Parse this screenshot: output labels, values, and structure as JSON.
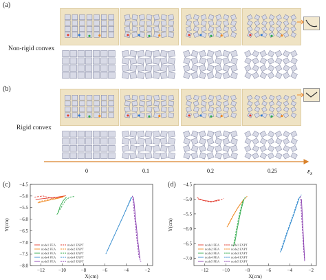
{
  "panels": {
    "a": {
      "label": "(a)",
      "row_label": "Non-rigid convex"
    },
    "b": {
      "label": "(b)",
      "row_label": "Rigid convex"
    },
    "c": {
      "label": "(c)"
    },
    "d": {
      "label": "(d)"
    }
  },
  "strain_axis": {
    "ticks": [
      "0",
      "0.1",
      "0.2",
      "0.25"
    ],
    "symbol": "ε",
    "subscript": "x",
    "color": "#d9822b"
  },
  "colors": {
    "frame_bg": "#efe3c4",
    "tile": "#d8dae6",
    "tile_stroke": "#7a7f9c",
    "marker_red": "#e23b2e",
    "marker_blue": "#2f78d4",
    "marker_green": "#2eaa4a",
    "marker_orange": "#f08a24"
  },
  "chart_data": [
    {
      "type": "line",
      "panel": "(c)",
      "xlabel": "X(cm)",
      "ylabel": "Y(cm)",
      "xlim": [
        -13,
        -1.5
      ],
      "ylim": [
        -8.0,
        -4.5
      ],
      "xticks": [
        -12,
        -10,
        -8,
        -6,
        -4,
        -2
      ],
      "yticks": [
        -4.5,
        -5.0,
        -5.5,
        -6.0,
        -6.5,
        -7.0,
        -7.5,
        -8.0
      ],
      "legend_loc": "lower-left",
      "series": [
        {
          "name": "node1 FEA",
          "color": "#e23b2e",
          "dash": false,
          "x": [
            -12.5,
            -11.5,
            -10.5,
            -9.8
          ],
          "y": [
            -5.15,
            -5.1,
            -5.05,
            -5.0
          ]
        },
        {
          "name": "node1 EXPT",
          "color": "#e23b2e",
          "dash": true,
          "x": [
            -12.6,
            -11.8,
            -11.0,
            -10.2,
            -9.6
          ],
          "y": [
            -5.05,
            -5.0,
            -5.1,
            -5.05,
            -4.98
          ]
        },
        {
          "name": "node2 FEA",
          "color": "#f08a24",
          "dash": false,
          "x": [
            -12.3,
            -11.4,
            -10.6,
            -9.9
          ],
          "y": [
            -5.3,
            -5.2,
            -5.12,
            -5.05
          ]
        },
        {
          "name": "node2 EXPT",
          "color": "#f08a24",
          "dash": true,
          "x": [
            -12.2,
            -11.3,
            -10.4,
            -9.7
          ],
          "y": [
            -5.25,
            -5.15,
            -5.08,
            -5.0
          ]
        },
        {
          "name": "node3 FEA",
          "color": "#2eaa4a",
          "dash": false,
          "x": [
            -10.4,
            -10.2,
            -9.9,
            -9.6
          ],
          "y": [
            -5.75,
            -5.45,
            -5.2,
            -5.05
          ]
        },
        {
          "name": "node3 EXPT",
          "color": "#2eaa4a",
          "dash": true,
          "x": [
            -10.5,
            -10.1,
            -9.7,
            -9.3,
            -8.8
          ],
          "y": [
            -5.8,
            -5.5,
            -5.2,
            -5.05,
            -5.02
          ]
        },
        {
          "name": "node4 FEA",
          "color": "#3a8fd0",
          "dash": false,
          "x": [
            -5.8,
            -5.0,
            -4.2,
            -3.5
          ],
          "y": [
            -7.4,
            -6.6,
            -5.8,
            -5.05
          ]
        },
        {
          "name": "node4 EXPT",
          "color": "#3a8fd0",
          "dash": true,
          "x": [
            -5.9,
            -5.1,
            -4.3,
            -3.4
          ],
          "y": [
            -7.5,
            -6.7,
            -5.9,
            -5.0
          ]
        },
        {
          "name": "node5 FEA",
          "color": "#8a3fb0",
          "dash": false,
          "x": [
            -3.3,
            -3.1,
            -2.9,
            -2.7
          ],
          "y": [
            -5.05,
            -6.0,
            -6.9,
            -7.7
          ]
        },
        {
          "name": "node5 EXPT",
          "color": "#8a3fb0",
          "dash": true,
          "x": [
            -3.4,
            -3.2,
            -3.0,
            -2.8,
            -2.6
          ],
          "y": [
            -5.0,
            -5.9,
            -6.8,
            -7.6,
            -7.85
          ]
        }
      ]
    },
    {
      "type": "line",
      "panel": "(d)",
      "xlabel": "X(cm)",
      "ylabel": "Y(cm)",
      "xlim": [
        -13,
        -1.5
      ],
      "ylim": [
        -7.25,
        -4.5
      ],
      "xticks": [
        -12,
        -10,
        -8,
        -6,
        -4,
        -2
      ],
      "yticks": [
        -4.5,
        -5.0,
        -5.5,
        -6.0,
        -6.5,
        -7.0
      ],
      "legend_loc": "lower-left",
      "series": [
        {
          "name": "node1 FEA",
          "color": "#e23b2e",
          "dash": false,
          "x": [
            -12.6,
            -12.0,
            -11.3,
            -10.6
          ],
          "y": [
            -5.0,
            -5.05,
            -5.08,
            -5.02
          ]
        },
        {
          "name": "node1 EXPT",
          "color": "#e23b2e",
          "dash": true,
          "x": [
            -12.7,
            -12.1,
            -11.4,
            -10.7,
            -10.2
          ],
          "y": [
            -4.95,
            -5.05,
            -5.1,
            -5.05,
            -4.98
          ]
        },
        {
          "name": "node2 FEA",
          "color": "#f08a24",
          "dash": false,
          "x": [
            -9.8,
            -9.3,
            -8.8,
            -8.3
          ],
          "y": [
            -5.9,
            -5.55,
            -5.25,
            -5.0
          ]
        },
        {
          "name": "node2 EXPT",
          "color": "#f08a24",
          "dash": true,
          "x": [
            -9.9,
            -9.4,
            -8.9,
            -8.4,
            -8.0
          ],
          "y": [
            -5.95,
            -5.6,
            -5.3,
            -5.05,
            -4.9
          ]
        },
        {
          "name": "node3 FEA",
          "color": "#2eaa4a",
          "dash": false,
          "x": [
            -9.2,
            -8.9,
            -8.6,
            -8.3
          ],
          "y": [
            -6.55,
            -5.95,
            -5.4,
            -5.0
          ]
        },
        {
          "name": "node3 EXPT",
          "color": "#2eaa4a",
          "dash": true,
          "x": [
            -9.3,
            -9.0,
            -8.7,
            -8.4,
            -8.1
          ],
          "y": [
            -6.6,
            -6.0,
            -5.45,
            -5.05,
            -4.9
          ]
        },
        {
          "name": "node4 FEA",
          "color": "#3a8fd0",
          "dash": false,
          "x": [
            -4.8,
            -4.2,
            -3.6,
            -3.1
          ],
          "y": [
            -6.75,
            -6.1,
            -5.5,
            -4.95
          ]
        },
        {
          "name": "node4 EXPT",
          "color": "#3a8fd0",
          "dash": true,
          "x": [
            -4.9,
            -4.3,
            -3.7,
            -3.2,
            -2.9
          ],
          "y": [
            -6.8,
            -6.15,
            -5.55,
            -5.0,
            -4.85
          ]
        },
        {
          "name": "node5 FEA",
          "color": "#8a3fb0",
          "dash": false,
          "x": [
            -2.9,
            -2.8,
            -2.7,
            -2.6
          ],
          "y": [
            -5.0,
            -5.7,
            -6.4,
            -7.05
          ]
        },
        {
          "name": "node5 EXPT",
          "color": "#8a3fb0",
          "dash": true,
          "x": [
            -3.0,
            -2.9,
            -2.8,
            -2.7,
            -2.6
          ],
          "y": [
            -4.9,
            -5.5,
            -6.1,
            -6.7,
            -7.1
          ]
        }
      ]
    }
  ]
}
